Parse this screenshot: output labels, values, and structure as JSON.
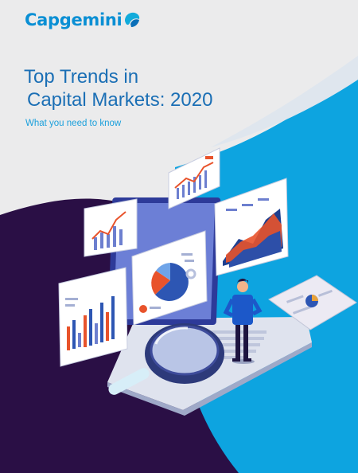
{
  "brand": {
    "name": "Capgemini",
    "color": "#0a8fd4"
  },
  "cover": {
    "title_line1": "Top Trends in",
    "title_line2": "Capital Markets: 2020",
    "subtitle": "What you need to know",
    "colors": {
      "title": "#1b6fb5",
      "subtitle": "#1ba0dc",
      "background": "#ebebec",
      "sky": "#0da4e0",
      "dark": "#2a0f45"
    }
  },
  "illustration": {
    "icons": [
      "magnifier-icon",
      "laptop-icon",
      "analyst-figure",
      "bar-chart-icon",
      "pie-chart-icon",
      "area-chart-icon",
      "line-chart-icon"
    ]
  }
}
